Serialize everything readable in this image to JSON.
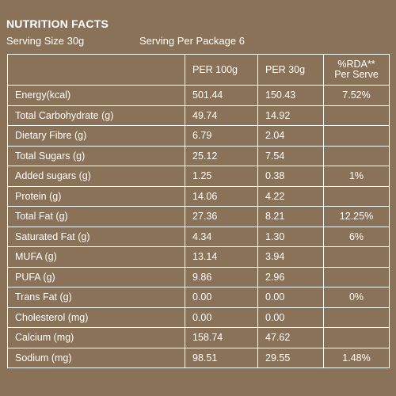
{
  "header": {
    "title": "NUTRITION FACTS",
    "serving_size": "Serving Size 30g",
    "servings_per_package": "Serving Per Package 6"
  },
  "table": {
    "columns": [
      "",
      "PER 100g",
      "PER 30g",
      "%RDA**",
      "Per Serve"
    ],
    "rows": [
      {
        "nutrient": "Energy(kcal)",
        "per100": "501.44",
        "per30": "150.43",
        "rda": "7.52%"
      },
      {
        "nutrient": "Total Carbohydrate (g)",
        "per100": "49.74",
        "per30": "14.92",
        "rda": ""
      },
      {
        "nutrient": "Dietary Fibre (g)",
        "per100": "6.79",
        "per30": "2.04",
        "rda": ""
      },
      {
        "nutrient": "Total Sugars (g)",
        "per100": "25.12",
        "per30": "7.54",
        "rda": ""
      },
      {
        "nutrient": "Added sugars (g)",
        "per100": "1.25",
        "per30": "0.38",
        "rda": "1%"
      },
      {
        "nutrient": "Protein (g)",
        "per100": "14.06",
        "per30": "4.22",
        "rda": ""
      },
      {
        "nutrient": "Total Fat (g)",
        "per100": "27.36",
        "per30": "8.21",
        "rda": "12.25%"
      },
      {
        "nutrient": "Saturated Fat (g)",
        "per100": "4.34",
        "per30": "1.30",
        "rda": "6%"
      },
      {
        "nutrient": "MUFA (g)",
        "per100": "13.14",
        "per30": "3.94",
        "rda": ""
      },
      {
        "nutrient": "PUFA (g)",
        "per100": "9.86",
        "per30": "2.96",
        "rda": ""
      },
      {
        "nutrient": "Trans Fat (g)",
        "per100": "0.00",
        "per30": "0.00",
        "rda": "0%"
      },
      {
        "nutrient": "Cholesterol (mg)",
        "per100": "0.00",
        "per30": "0.00",
        "rda": ""
      },
      {
        "nutrient": "Calcium (mg)",
        "per100": "158.74",
        "per30": "47.62",
        "rda": ""
      },
      {
        "nutrient": "Sodium (mg)",
        "per100": "98.51",
        "per30": "29.55",
        "rda": "1.48%"
      }
    ]
  },
  "colors": {
    "panel_background": "#8a7259",
    "text": "#ffffff",
    "grid_lines": "#ffffff"
  }
}
